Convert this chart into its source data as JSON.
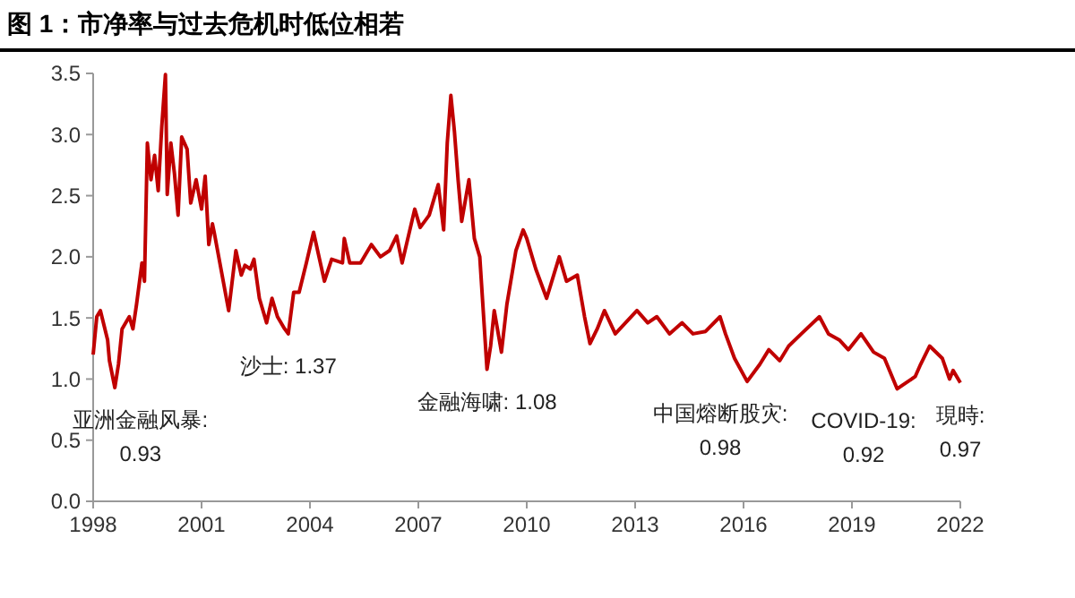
{
  "chart_data": {
    "type": "line",
    "title": "图 1：市净率与过去危机时低位相若",
    "xlim": [
      1998,
      2022
    ],
    "xticks": [
      1998,
      2001,
      2004,
      2007,
      2010,
      2013,
      2016,
      2019,
      2022
    ],
    "ylim": [
      0,
      3.5
    ],
    "yticks": [
      {
        "value": 0,
        "label": "0.0"
      },
      {
        "value": 0.5,
        "label": "0.5"
      },
      {
        "value": 1,
        "label": "1.0"
      },
      {
        "value": 1.5,
        "label": "1.5"
      },
      {
        "value": 2,
        "label": "2.0"
      },
      {
        "value": 2.5,
        "label": "2.5"
      },
      {
        "value": 3,
        "label": "3.0"
      },
      {
        "value": 3.5,
        "label": "3.5"
      }
    ],
    "grid": false,
    "series": [
      {
        "color": "#c00000",
        "x": [
          1998.0,
          1998.1,
          1998.2,
          1998.4,
          1998.45,
          1998.6,
          1998.7,
          1998.8,
          1999.0,
          1999.1,
          1999.2,
          1999.35,
          1999.42,
          1999.5,
          1999.6,
          1999.7,
          1999.8,
          1999.9,
          2000.0,
          2000.05,
          2000.15,
          2000.25,
          2000.35,
          2000.45,
          2000.6,
          2000.7,
          2000.85,
          2001.0,
          2001.1,
          2001.2,
          2001.3,
          2001.35,
          2001.6,
          2001.75,
          2001.95,
          2002.1,
          2002.2,
          2002.35,
          2002.45,
          2002.6,
          2002.8,
          2002.95,
          2003.1,
          2003.3,
          2003.4,
          2003.55,
          2003.7,
          2003.9,
          2004.1,
          2004.4,
          2004.6,
          2004.9,
          2004.95,
          2005.1,
          2005.4,
          2005.7,
          2005.95,
          2006.2,
          2006.4,
          2006.55,
          2006.9,
          2007.05,
          2007.3,
          2007.55,
          2007.7,
          2007.8,
          2007.9,
          2008.0,
          2008.1,
          2008.2,
          2008.4,
          2008.55,
          2008.7,
          2008.9,
          2009.0,
          2009.1,
          2009.3,
          2009.45,
          2009.7,
          2009.9,
          2010.0,
          2010.25,
          2010.55,
          2010.9,
          2011.1,
          2011.4,
          2011.6,
          2011.75,
          2011.95,
          2012.15,
          2012.45,
          2013.05,
          2013.35,
          2013.6,
          2013.95,
          2014.3,
          2014.6,
          2014.95,
          2015.35,
          2015.5,
          2015.75,
          2016.1,
          2016.45,
          2016.7,
          2017.0,
          2017.25,
          2017.6,
          2018.1,
          2018.35,
          2018.65,
          2018.9,
          2019.25,
          2019.6,
          2019.9,
          2020.25,
          2020.75,
          2020.9,
          2021.15,
          2021.5,
          2021.7,
          2021.8,
          2022.0
        ],
        "values": [
          1.2,
          1.51,
          1.56,
          1.32,
          1.15,
          0.93,
          1.12,
          1.41,
          1.51,
          1.41,
          1.61,
          1.95,
          1.8,
          2.93,
          2.63,
          2.83,
          2.54,
          3.07,
          3.49,
          2.51,
          2.93,
          2.68,
          2.34,
          2.98,
          2.88,
          2.44,
          2.63,
          2.39,
          2.66,
          2.1,
          2.27,
          2.2,
          1.8,
          1.56,
          2.05,
          1.85,
          1.93,
          1.9,
          1.98,
          1.66,
          1.46,
          1.66,
          1.51,
          1.41,
          1.37,
          1.71,
          1.71,
          1.95,
          2.2,
          1.8,
          1.98,
          1.95,
          2.15,
          1.95,
          1.95,
          2.1,
          2.0,
          2.05,
          2.17,
          1.95,
          2.39,
          2.24,
          2.34,
          2.59,
          2.22,
          2.93,
          3.32,
          3.02,
          2.63,
          2.29,
          2.63,
          2.15,
          2.0,
          1.08,
          1.27,
          1.56,
          1.22,
          1.61,
          2.05,
          2.22,
          2.15,
          1.9,
          1.66,
          2.0,
          1.8,
          1.85,
          1.51,
          1.29,
          1.41,
          1.56,
          1.37,
          1.56,
          1.46,
          1.51,
          1.37,
          1.46,
          1.37,
          1.39,
          1.51,
          1.37,
          1.17,
          0.98,
          1.12,
          1.24,
          1.15,
          1.27,
          1.37,
          1.51,
          1.37,
          1.32,
          1.24,
          1.37,
          1.22,
          1.17,
          0.92,
          1.02,
          1.12,
          1.27,
          1.17,
          1.0,
          1.07,
          0.97
        ]
      }
    ],
    "annotations": [
      {
        "text": "亚洲金融风暴:\n0.93",
        "x": 1998.6,
        "y": 0.93
      },
      {
        "text": "沙士: 1.37",
        "x": 2003.4,
        "y": 1.37
      },
      {
        "text": "金融海啸: 1.08",
        "x": 2008.9,
        "y": 1.08
      },
      {
        "text": "中国熔断股灾:\n0.98",
        "x": 2016.1,
        "y": 0.98
      },
      {
        "text": "COVID-19:\n0.92",
        "x": 2020.25,
        "y": 0.92
      },
      {
        "text": "現時:\n0.97",
        "x": 2022.0,
        "y": 0.97
      }
    ]
  }
}
